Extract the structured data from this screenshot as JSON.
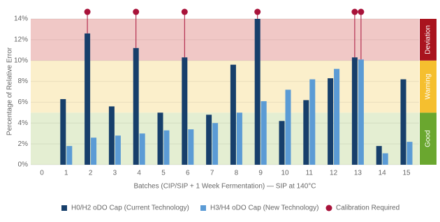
{
  "chart_data": {
    "type": "bar",
    "y_label": "Percentage of Relative Error",
    "x_label": "Batches (CIP/SIP + 1 Week Fermentation) — SIP at 140°C",
    "categories": [
      "0",
      "1",
      "2",
      "3",
      "4",
      "5",
      "6",
      "7",
      "8",
      "9",
      "10",
      "11",
      "12",
      "13",
      "14",
      "15"
    ],
    "series": [
      {
        "name": "H0/H2 oDO Cap (Current Technology)",
        "color": "#173f6b",
        "values": [
          null,
          6.3,
          12.6,
          5.6,
          11.2,
          5.0,
          10.3,
          4.8,
          9.6,
          14.0,
          4.2,
          6.2,
          8.3,
          10.3,
          1.8,
          8.2
        ],
        "calibration_required": [
          false,
          false,
          true,
          false,
          true,
          false,
          true,
          false,
          false,
          true,
          false,
          false,
          false,
          true,
          false,
          false
        ]
      },
      {
        "name": "H3/H4 oDO Cap (New Technology)",
        "color": "#5b9bd5",
        "values": [
          null,
          1.8,
          2.6,
          2.8,
          3.0,
          3.3,
          3.4,
          4.0,
          5.0,
          6.1,
          7.2,
          8.2,
          9.2,
          10.1,
          1.1,
          2.2
        ],
        "calibration_required": [
          false,
          false,
          false,
          false,
          false,
          false,
          false,
          false,
          false,
          false,
          false,
          false,
          false,
          true,
          false,
          false
        ]
      }
    ],
    "calibration": {
      "name": "Calibration Required",
      "color": "#a8123a"
    },
    "zones": [
      {
        "label": "Good",
        "from": 0,
        "to": 5,
        "color": "#e4eed2",
        "tab_color": "#6aa72f"
      },
      {
        "label": "Warning",
        "from": 5,
        "to": 10,
        "color": "#fbefcb",
        "tab_color": "#f5bf2f"
      },
      {
        "label": "Deviation",
        "from": 10,
        "to": 14,
        "color": "#f0c8c6",
        "tab_color": "#a9141e"
      }
    ],
    "ylim": [
      0,
      14
    ],
    "yticks": [
      {
        "value": 0,
        "label": "0%"
      },
      {
        "value": 2,
        "label": "2%"
      },
      {
        "value": 4,
        "label": "4%"
      },
      {
        "value": 6,
        "label": "6%"
      },
      {
        "value": 8,
        "label": "8%"
      },
      {
        "value": 10,
        "label": "10%"
      },
      {
        "value": 12,
        "label": "12%"
      },
      {
        "value": 14,
        "label": "14%"
      }
    ],
    "grid": true
  }
}
